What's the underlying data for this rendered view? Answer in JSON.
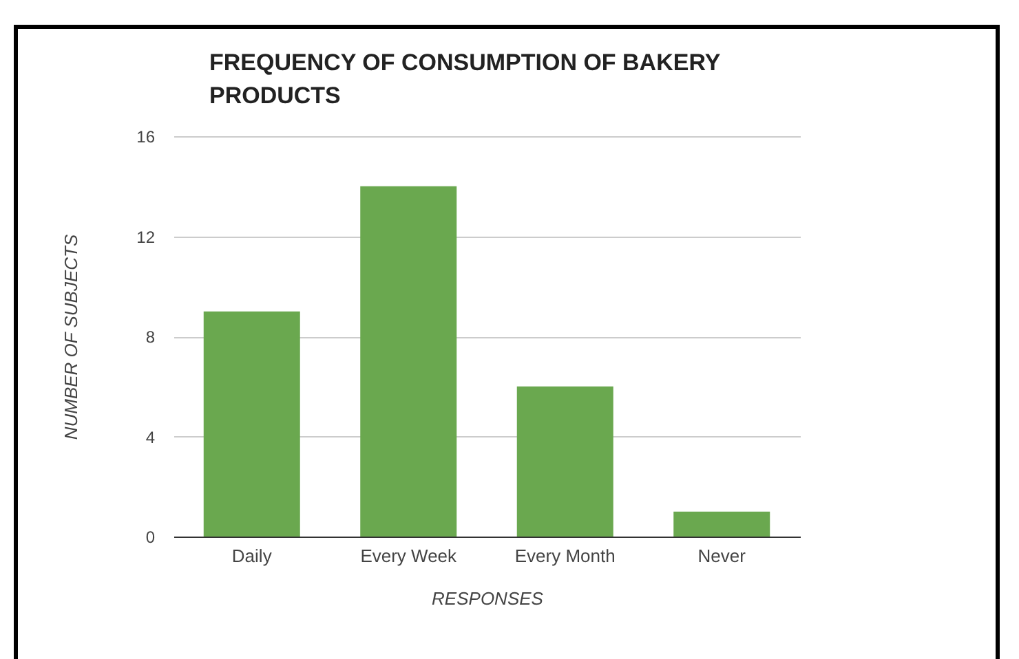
{
  "chart_data": {
    "type": "bar",
    "title": "FREQUENCY OF CONSUMPTION OF BAKERY PRODUCTS",
    "xlabel": "RESPONSES",
    "ylabel": "NUMBER OF SUBJECTS",
    "categories": [
      "Daily",
      "Every Week",
      "Every Month",
      "Never"
    ],
    "values": [
      9,
      14,
      6,
      1
    ],
    "color": "#6aa84f",
    "ylim": [
      0,
      16
    ],
    "yticks": [
      0,
      4,
      8,
      12,
      16
    ],
    "grid": "y"
  }
}
